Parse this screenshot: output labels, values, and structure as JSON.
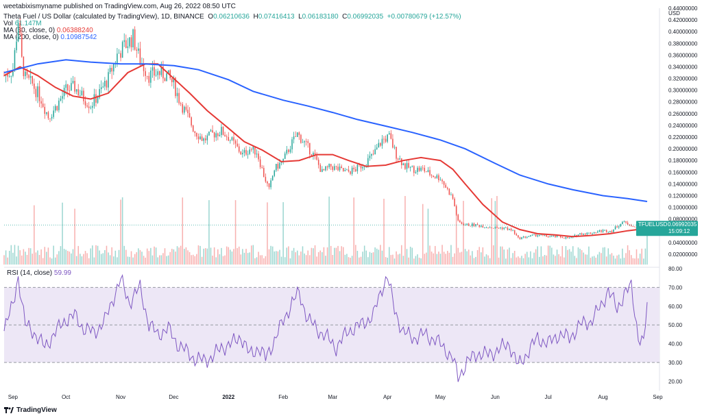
{
  "header": {
    "publisher": "weetabixismyname published on TradingView.com, Aug 26, 2022 08:50 UTC",
    "symbol": "Theta Fuel / US Dollar (calculated by TradingView), 1D, BINANCE",
    "ohlc": {
      "o_label": "O",
      "o": "0.06210636",
      "h_label": "H",
      "h": "0.07416413",
      "l_label": "L",
      "l": "0.06183180",
      "c_label": "C",
      "c": "0.06992035",
      "change": "+0.00780679 (+12.57%)"
    },
    "vol_label": "Vol",
    "vol": "61.147M",
    "ma30_label": "MA (30, close, 0)",
    "ma30": "0.06388240",
    "ma200_label": "MA (200, close, 0)",
    "ma200": "0.10987542"
  },
  "price_label": {
    "symbol": "TFUELUSD",
    "price": "0.06992035",
    "countdown": "15:09:12"
  },
  "rsi_label": {
    "name": "RSI (14, close)",
    "value": "59.99"
  },
  "footer": {
    "brand": "TradingView"
  },
  "colors": {
    "up": "#26a69a",
    "down": "#ef5350",
    "ma30": "#e53935",
    "ma200": "#2962ff",
    "rsi": "#7e57c2",
    "rsi_band": "#ede7f6"
  },
  "icons": {
    "logo": "tradingview-logo-icon"
  },
  "chart_data": [
    {
      "type": "candlestick",
      "title": "Theta Fuel / US Dollar",
      "ylabel": "USD",
      "ylim": [
        0.0,
        0.44
      ],
      "y_ticks": [
        "0.02000000",
        "0.04000000",
        "0.06000000",
        "0.08000000",
        "0.10000000",
        "0.12000000",
        "0.14000000",
        "0.16000000",
        "0.18000000",
        "0.20000000",
        "0.22000000",
        "0.24000000",
        "0.26000000",
        "0.28000000",
        "0.30000000",
        "0.32000000",
        "0.34000000",
        "0.36000000",
        "0.38000000",
        "0.40000000",
        "0.42000000",
        "0.44000000"
      ],
      "x_ticks": [
        "Sep",
        "Oct",
        "Nov",
        "Dec",
        "2022",
        "Feb",
        "Mar",
        "Apr",
        "May",
        "Jun",
        "Jul",
        "Aug",
        "Sep"
      ],
      "x_range": [
        "2021-08-27",
        "2022-09-02"
      ],
      "close_series": [
        [
          "2021-08-27",
          0.325
        ],
        [
          "2021-09-01",
          0.335
        ],
        [
          "2021-09-04",
          0.42
        ],
        [
          "2021-09-06",
          0.35
        ],
        [
          "2021-09-08",
          0.32
        ],
        [
          "2021-09-12",
          0.31
        ],
        [
          "2021-09-17",
          0.285
        ],
        [
          "2021-09-21",
          0.255
        ],
        [
          "2021-09-25",
          0.27
        ],
        [
          "2021-10-01",
          0.3
        ],
        [
          "2021-10-06",
          0.305
        ],
        [
          "2021-10-10",
          0.29
        ],
        [
          "2021-10-15",
          0.275
        ],
        [
          "2021-10-20",
          0.295
        ],
        [
          "2021-10-25",
          0.32
        ],
        [
          "2021-10-30",
          0.36
        ],
        [
          "2021-11-03",
          0.375
        ],
        [
          "2021-11-08",
          0.39
        ],
        [
          "2021-11-12",
          0.35
        ],
        [
          "2021-11-17",
          0.325
        ],
        [
          "2021-11-22",
          0.33
        ],
        [
          "2021-11-27",
          0.325
        ],
        [
          "2021-12-01",
          0.31
        ],
        [
          "2021-12-04",
          0.285
        ],
        [
          "2021-12-08",
          0.26
        ],
        [
          "2021-12-13",
          0.23
        ],
        [
          "2021-12-18",
          0.215
        ],
        [
          "2021-12-23",
          0.225
        ],
        [
          "2021-12-28",
          0.23
        ],
        [
          "2022-01-01",
          0.22
        ],
        [
          "2022-01-05",
          0.205
        ],
        [
          "2022-01-09",
          0.19
        ],
        [
          "2022-01-13",
          0.2
        ],
        [
          "2022-01-17",
          0.195
        ],
        [
          "2022-01-21",
          0.155
        ],
        [
          "2022-01-24",
          0.13
        ],
        [
          "2022-01-27",
          0.165
        ],
        [
          "2022-02-01",
          0.18
        ],
        [
          "2022-02-05",
          0.205
        ],
        [
          "2022-02-09",
          0.225
        ],
        [
          "2022-02-13",
          0.21
        ],
        [
          "2022-02-18",
          0.19
        ],
        [
          "2022-02-23",
          0.16
        ],
        [
          "2022-02-28",
          0.17
        ],
        [
          "2022-03-04",
          0.165
        ],
        [
          "2022-03-09",
          0.16
        ],
        [
          "2022-03-14",
          0.165
        ],
        [
          "2022-03-19",
          0.175
        ],
        [
          "2022-03-24",
          0.19
        ],
        [
          "2022-03-29",
          0.215
        ],
        [
          "2022-04-02",
          0.22
        ],
        [
          "2022-04-06",
          0.19
        ],
        [
          "2022-04-11",
          0.17
        ],
        [
          "2022-04-16",
          0.165
        ],
        [
          "2022-04-21",
          0.165
        ],
        [
          "2022-04-26",
          0.155
        ],
        [
          "2022-05-01",
          0.15
        ],
        [
          "2022-05-05",
          0.13
        ],
        [
          "2022-05-08",
          0.115
        ],
        [
          "2022-05-11",
          0.075
        ],
        [
          "2022-05-15",
          0.07
        ],
        [
          "2022-05-20",
          0.07
        ],
        [
          "2022-05-25",
          0.068
        ],
        [
          "2022-06-01",
          0.065
        ],
        [
          "2022-06-06",
          0.065
        ],
        [
          "2022-06-11",
          0.06
        ],
        [
          "2022-06-14",
          0.047
        ],
        [
          "2022-06-19",
          0.05
        ],
        [
          "2022-06-25",
          0.053
        ],
        [
          "2022-07-01",
          0.05
        ],
        [
          "2022-07-07",
          0.05
        ],
        [
          "2022-07-13",
          0.047
        ],
        [
          "2022-07-19",
          0.055
        ],
        [
          "2022-07-25",
          0.056
        ],
        [
          "2022-07-31",
          0.06
        ],
        [
          "2022-08-06",
          0.06
        ],
        [
          "2022-08-12",
          0.075
        ],
        [
          "2022-08-17",
          0.07
        ],
        [
          "2022-08-21",
          0.06
        ],
        [
          "2022-08-25",
          0.062
        ],
        [
          "2022-08-26",
          0.07
        ]
      ],
      "series": [
        {
          "name": "MA (30, close, 0)",
          "values": [
            [
              "2021-08-27",
              0.325
            ],
            [
              "2021-09-05",
              0.34
            ],
            [
              "2021-09-15",
              0.325
            ],
            [
              "2021-09-25",
              0.305
            ],
            [
              "2021-10-05",
              0.29
            ],
            [
              "2021-10-15",
              0.285
            ],
            [
              "2021-10-25",
              0.295
            ],
            [
              "2021-11-05",
              0.33
            ],
            [
              "2021-11-15",
              0.345
            ],
            [
              "2021-11-22",
              0.345
            ],
            [
              "2021-12-01",
              0.32
            ],
            [
              "2021-12-10",
              0.295
            ],
            [
              "2021-12-20",
              0.265
            ],
            [
              "2022-01-01",
              0.235
            ],
            [
              "2022-01-10",
              0.212
            ],
            [
              "2022-01-20",
              0.198
            ],
            [
              "2022-01-31",
              0.178
            ],
            [
              "2022-02-10",
              0.18
            ],
            [
              "2022-02-20",
              0.19
            ],
            [
              "2022-03-01",
              0.19
            ],
            [
              "2022-03-10",
              0.18
            ],
            [
              "2022-03-20",
              0.17
            ],
            [
              "2022-03-31",
              0.172
            ],
            [
              "2022-04-10",
              0.18
            ],
            [
              "2022-04-20",
              0.185
            ],
            [
              "2022-05-01",
              0.18
            ],
            [
              "2022-05-08",
              0.165
            ],
            [
              "2022-05-15",
              0.14
            ],
            [
              "2022-05-25",
              0.105
            ],
            [
              "2022-06-05",
              0.075
            ],
            [
              "2022-06-15",
              0.062
            ],
            [
              "2022-06-25",
              0.055
            ],
            [
              "2022-07-05",
              0.053
            ],
            [
              "2022-07-15",
              0.05
            ],
            [
              "2022-07-25",
              0.052
            ],
            [
              "2022-08-05",
              0.055
            ],
            [
              "2022-08-15",
              0.06
            ],
            [
              "2022-08-26",
              0.064
            ]
          ]
        },
        {
          "name": "MA (200, close, 0)",
          "values": [
            [
              "2021-08-27",
              0.33
            ],
            [
              "2021-09-15",
              0.345
            ],
            [
              "2021-10-01",
              0.352
            ],
            [
              "2021-10-15",
              0.348
            ],
            [
              "2021-11-01",
              0.345
            ],
            [
              "2021-11-15",
              0.345
            ],
            [
              "2021-12-01",
              0.342
            ],
            [
              "2021-12-15",
              0.335
            ],
            [
              "2022-01-01",
              0.318
            ],
            [
              "2022-01-15",
              0.298
            ],
            [
              "2022-02-01",
              0.283
            ],
            [
              "2022-02-15",
              0.273
            ],
            [
              "2022-03-01",
              0.262
            ],
            [
              "2022-03-15",
              0.25
            ],
            [
              "2022-04-01",
              0.238
            ],
            [
              "2022-04-15",
              0.228
            ],
            [
              "2022-05-01",
              0.215
            ],
            [
              "2022-05-15",
              0.2
            ],
            [
              "2022-06-01",
              0.175
            ],
            [
              "2022-06-15",
              0.155
            ],
            [
              "2022-07-01",
              0.14
            ],
            [
              "2022-07-15",
              0.13
            ],
            [
              "2022-08-01",
              0.12
            ],
            [
              "2022-08-15",
              0.115
            ],
            [
              "2022-08-26",
              0.11
            ]
          ]
        }
      ],
      "volume_bars_visible": true
    },
    {
      "type": "line",
      "title": "RSI (14, close)",
      "ylim": [
        15,
        80
      ],
      "y_ticks": [
        "20.00",
        "30.00",
        "40.00",
        "50.00",
        "60.00",
        "70.00",
        "80.00"
      ],
      "band": [
        30,
        70
      ],
      "midline": 50,
      "series": [
        {
          "name": "RSI (14, close)",
          "values": [
            [
              "2021-08-27",
              49
            ],
            [
              "2021-09-01",
              60
            ],
            [
              "2021-09-04",
              76
            ],
            [
              "2021-09-08",
              50
            ],
            [
              "2021-09-13",
              46
            ],
            [
              "2021-09-19",
              38
            ],
            [
              "2021-09-24",
              45
            ],
            [
              "2021-10-01",
              53
            ],
            [
              "2021-10-06",
              55
            ],
            [
              "2021-10-11",
              48
            ],
            [
              "2021-10-17",
              46
            ],
            [
              "2021-10-23",
              52
            ],
            [
              "2021-10-28",
              65
            ],
            [
              "2021-11-01",
              74
            ],
            [
              "2021-11-06",
              62
            ],
            [
              "2021-11-12",
              70
            ],
            [
              "2021-11-17",
              50
            ],
            [
              "2021-11-22",
              45
            ],
            [
              "2021-11-28",
              48
            ],
            [
              "2021-12-03",
              40
            ],
            [
              "2021-12-08",
              36
            ],
            [
              "2021-12-13",
              32
            ],
            [
              "2021-12-18",
              31
            ],
            [
              "2021-12-23",
              33
            ],
            [
              "2021-12-28",
              38
            ],
            [
              "2022-01-03",
              40
            ],
            [
              "2022-01-08",
              44
            ],
            [
              "2022-01-13",
              34
            ],
            [
              "2022-01-18",
              38
            ],
            [
              "2022-01-22",
              32
            ],
            [
              "2022-01-26",
              40
            ],
            [
              "2022-02-01",
              52
            ],
            [
              "2022-02-06",
              62
            ],
            [
              "2022-02-10",
              67
            ],
            [
              "2022-02-15",
              53
            ],
            [
              "2022-02-20",
              48
            ],
            [
              "2022-02-26",
              43
            ],
            [
              "2022-03-03",
              38
            ],
            [
              "2022-03-10",
              47
            ],
            [
              "2022-03-17",
              50
            ],
            [
              "2022-03-24",
              55
            ],
            [
              "2022-03-29",
              70
            ],
            [
              "2022-04-01",
              76
            ],
            [
              "2022-04-05",
              58
            ],
            [
              "2022-04-10",
              46
            ],
            [
              "2022-04-16",
              43
            ],
            [
              "2022-04-22",
              45
            ],
            [
              "2022-04-28",
              42
            ],
            [
              "2022-05-03",
              38
            ],
            [
              "2022-05-08",
              32
            ],
            [
              "2022-05-11",
              22
            ],
            [
              "2022-05-16",
              30
            ],
            [
              "2022-05-22",
              35
            ],
            [
              "2022-05-28",
              34
            ],
            [
              "2022-06-03",
              37
            ],
            [
              "2022-06-09",
              40
            ],
            [
              "2022-06-14",
              28
            ],
            [
              "2022-06-19",
              35
            ],
            [
              "2022-06-25",
              43
            ],
            [
              "2022-07-01",
              40
            ],
            [
              "2022-07-07",
              45
            ],
            [
              "2022-07-13",
              43
            ],
            [
              "2022-07-19",
              50
            ],
            [
              "2022-07-25",
              52
            ],
            [
              "2022-07-31",
              60
            ],
            [
              "2022-08-04",
              69
            ],
            [
              "2022-08-09",
              58
            ],
            [
              "2022-08-13",
              67
            ],
            [
              "2022-08-17",
              70
            ],
            [
              "2022-08-21",
              44
            ],
            [
              "2022-08-24",
              40
            ],
            [
              "2022-08-26",
              60
            ]
          ]
        }
      ]
    }
  ]
}
